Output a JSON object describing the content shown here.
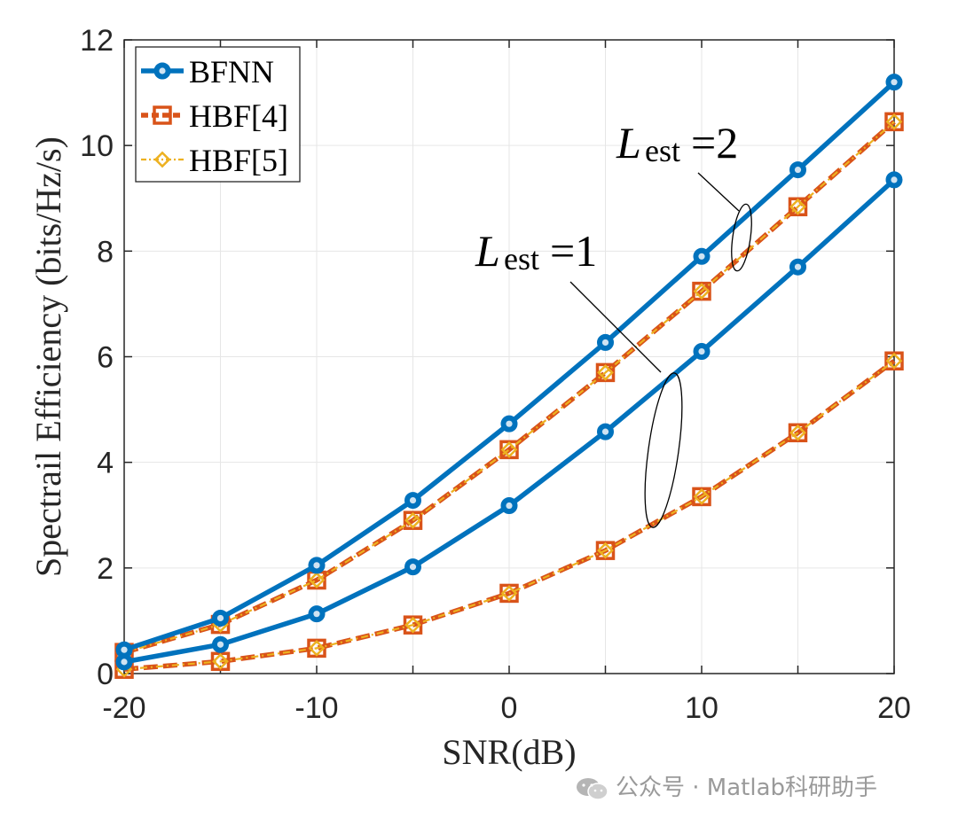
{
  "chart_data": {
    "type": "line",
    "title": "",
    "xlabel": "SNR(dB)",
    "ylabel": "Spectrail Efficiency (bits/Hz/s)",
    "xlim": [
      -20,
      20
    ],
    "ylim": [
      0,
      12
    ],
    "xticks": [
      -20,
      -10,
      0,
      10,
      20
    ],
    "yticks": [
      0,
      2,
      4,
      6,
      8,
      10,
      12
    ],
    "grid": true,
    "legend_position": "top-left",
    "x": [
      -20,
      -15,
      -10,
      -5,
      0,
      5,
      10,
      15,
      20
    ],
    "series": [
      {
        "name": "BFNN",
        "group": "L_est=2",
        "color": "#0072BD",
        "marker": "circle",
        "values": [
          0.45,
          1.05,
          2.05,
          3.28,
          4.73,
          6.27,
          7.9,
          9.54,
          11.2
        ]
      },
      {
        "name": "HBF[4]",
        "group": "L_est=2",
        "color": "#D95319",
        "marker": "square",
        "values": [
          0.4,
          0.93,
          1.77,
          2.9,
          4.24,
          5.7,
          7.24,
          8.84,
          10.45
        ]
      },
      {
        "name": "HBF[5]",
        "group": "L_est=2",
        "color": "#EDB120",
        "marker": "diamond",
        "values": [
          0.4,
          0.93,
          1.77,
          2.9,
          4.24,
          5.7,
          7.24,
          8.84,
          10.45
        ]
      },
      {
        "name": "BFNN",
        "group": "L_est=1",
        "color": "#0072BD",
        "marker": "circle",
        "values": [
          0.22,
          0.55,
          1.13,
          2.02,
          3.18,
          4.58,
          6.1,
          7.7,
          9.35
        ]
      },
      {
        "name": "HBF[4]",
        "group": "L_est=1",
        "color": "#D95319",
        "marker": "square",
        "values": [
          0.08,
          0.23,
          0.48,
          0.92,
          1.52,
          2.33,
          3.35,
          4.56,
          5.92
        ]
      },
      {
        "name": "HBF[5]",
        "group": "L_est=1",
        "color": "#EDB120",
        "marker": "diamond",
        "values": [
          0.08,
          0.23,
          0.48,
          0.92,
          1.52,
          2.33,
          3.35,
          4.56,
          5.92
        ]
      }
    ],
    "legend": [
      "BFNN",
      "HBF[4]",
      "HBF[5]"
    ],
    "annotations": [
      {
        "main": "L",
        "sub": "est",
        "eq": "=2",
        "target_x": 12,
        "target_y": 8.2
      },
      {
        "main": "L",
        "sub": "est",
        "eq": "=1",
        "target_x": 8,
        "target_y": 4.2
      }
    ]
  },
  "watermark": {
    "text": "公众号 · Matlab科研助手"
  }
}
